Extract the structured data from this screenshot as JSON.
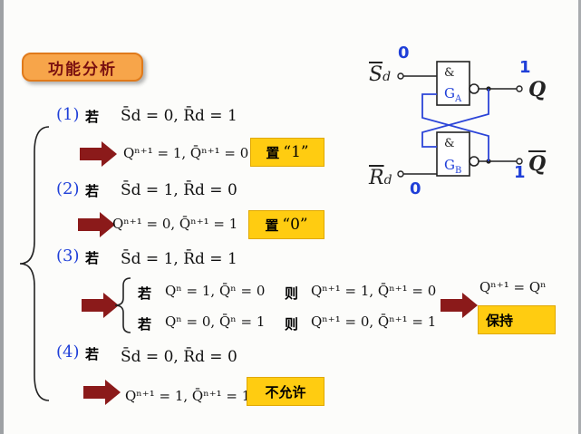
{
  "title": "功能分析",
  "circuit": {
    "sd_label": "S",
    "rd_label": "R",
    "d_sub": "d",
    "q_label": "Q",
    "qbar_label": "Q",
    "and_symbol": "&",
    "gate_a": "G",
    "gate_a_sub": "A",
    "gate_b": "G",
    "gate_b_sub": "B",
    "sd_value": "0",
    "rd_value": "0",
    "q_value": "1",
    "qbar_value": "1"
  },
  "cases": [
    {
      "num": "(1)",
      "if_word": "若",
      "condition": "S̄d = 0, R̄d = 1",
      "result": "Qⁿ⁺¹ = 1, Q̄ⁿ⁺¹ = 0",
      "box_prefix": "置",
      "box_value": "“1”"
    },
    {
      "num": "(2)",
      "if_word": "若",
      "condition": "S̄d = 1, R̄d = 0",
      "result": "Qⁿ⁺¹ = 0, Q̄ⁿ⁺¹ = 1",
      "box_prefix": "置",
      "box_value": "“0”"
    },
    {
      "num": "(3)",
      "if_word": "若",
      "condition": "S̄d = 1, R̄d = 1",
      "sub_a_if": "若",
      "sub_a_cond": "Qⁿ = 1, Q̄ⁿ = 0",
      "sub_a_then": "则",
      "sub_a_result": "Qⁿ⁺¹ = 1, Q̄ⁿ⁺¹ = 0",
      "sub_b_if": "若",
      "sub_b_cond": "Qⁿ = 0, Q̄ⁿ = 1",
      "sub_b_then": "则",
      "sub_b_result": "Qⁿ⁺¹ = 0, Q̄ⁿ⁺¹ = 1",
      "summary": "Qⁿ⁺¹ = Qⁿ",
      "box_label": "保持"
    },
    {
      "num": "(4)",
      "if_word": "若",
      "condition": "S̄d = 0, R̄d = 0",
      "result": "Qⁿ⁺¹ = 1, Q̄ⁿ⁺¹ = 1",
      "box_label": "不允许"
    }
  ],
  "colors": {
    "title_fill": "#f7a54a",
    "title_text": "#7a1010",
    "highlight": "#ffcc11",
    "arrow": "#8b1a1a",
    "accent_blue": "#1f3fd8"
  }
}
